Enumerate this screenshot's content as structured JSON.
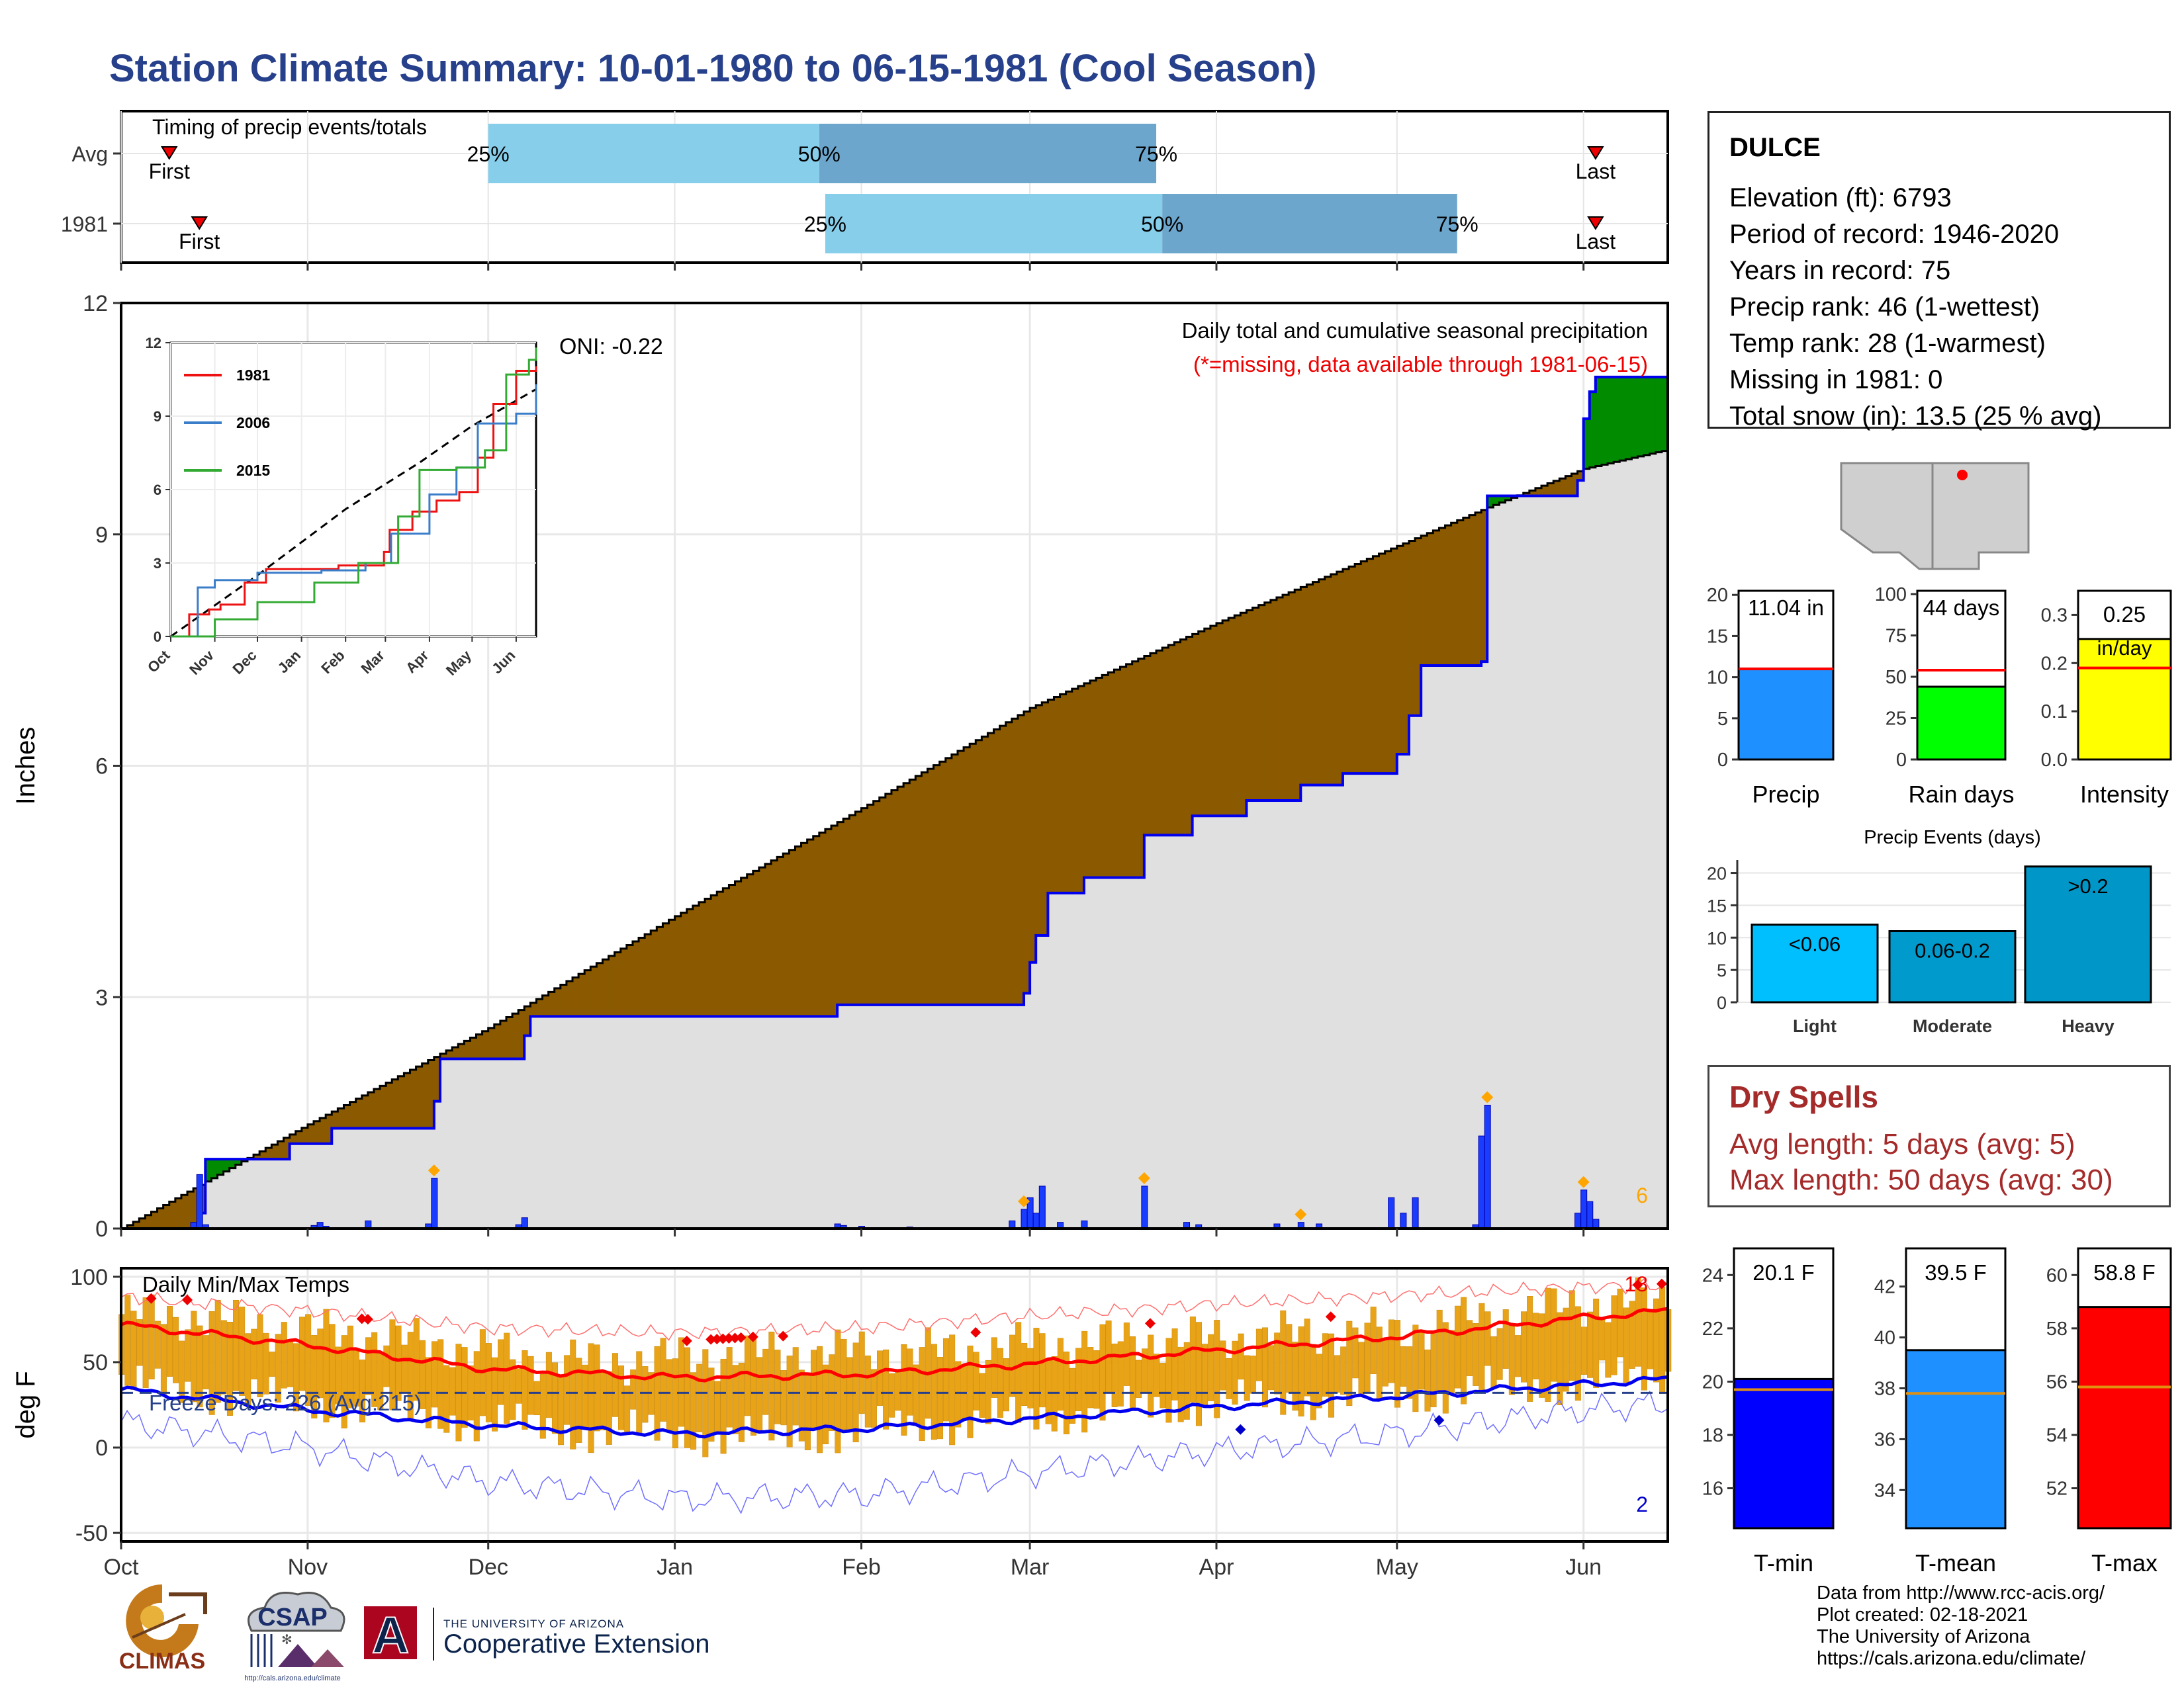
{
  "title": "Station Climate Summary: 10-01-1980 to 06-15-1981 (Cool Season)",
  "station": {
    "name": "DULCE",
    "lines": [
      "Elevation (ft): 6793",
      "Period of record: 1946-2020",
      "Years in record: 75",
      "Precip rank: 46 (1-wettest)",
      "Temp rank: 28 (1-warmest)",
      "Missing in 1981: 0",
      "Total snow (in): 13.5 (25 % avg)"
    ]
  },
  "dry_spells": {
    "heading": "Dry Spells",
    "avg_length": "Avg length: 5 days (avg: 5)",
    "max_length": "Max length: 50 days (avg: 30)"
  },
  "credits": {
    "line1": "Data from http://www.rcc-acis.org/",
    "line2": "Plot created: 02-18-2021",
    "line3": "The University of Arizona",
    "line4": "https://cals.arizona.edu/climate/"
  },
  "logos": {
    "climas": "CLIMAS",
    "csap": "CSAP",
    "csap_url": "http://cals.arizona.edu/climate",
    "ua_small": "THE UNIVERSITY OF ARIZONA",
    "ua_big": "Cooperative Extension",
    "ua_letter": "A"
  },
  "colors": {
    "title": "#27408b",
    "deficit": "#8b5a00",
    "surplus": "#008b00",
    "normal_fill": "#e0e0e0",
    "obs_line": "#0000ee",
    "temp_bar": "#e8a317",
    "q_light": "#87ceeb",
    "q_dark": "#6ca6cd"
  },
  "chart_data": [
    {
      "type": "bar",
      "name": "timing",
      "title": "Timing of precip events/totals",
      "rows": [
        "Avg",
        "1981"
      ],
      "x_units": "date",
      "xlim": [
        "1980-10-01",
        "1981-06-15"
      ],
      "avg": {
        "first": "1980-10-09",
        "q25": "1980-12-01",
        "q50": "1981-01-25",
        "q75": "1981-03-22",
        "last": "1981-06-03"
      },
      "year": {
        "first": "1980-10-14",
        "q25": "1981-01-26",
        "q50": "1981-03-23",
        "q75": "1981-05-11",
        "last": "1981-06-03"
      },
      "labels": {
        "first": "First",
        "last": "Last",
        "q25": "25%",
        "q50": "50%",
        "q75": "75%"
      }
    },
    {
      "type": "area",
      "name": "precipitation",
      "title": "Daily total and cumulative seasonal precipitation",
      "subtitle": "(*=missing, data available through 1981-06-15)",
      "annotation": "ONI: -0.22",
      "ylabel": "Inches",
      "ylim": [
        0,
        12
      ],
      "y_ticks": [
        0,
        3,
        6,
        9,
        12
      ],
      "x_ticks": [
        "Oct",
        "Nov",
        "Dec",
        "Jan",
        "Feb",
        "Mar",
        "Apr",
        "May",
        "Jun"
      ],
      "x_tick_dates": [
        "1980-10-01",
        "1980-11-01",
        "1980-12-01",
        "1981-01-01",
        "1981-02-01",
        "1981-03-01",
        "1981-04-01",
        "1981-05-01",
        "1981-06-01"
      ],
      "count_label": "6",
      "normal_cumulative": {
        "x": [
          "1980-10-01",
          "1980-11-01",
          "1980-12-01",
          "1981-01-01",
          "1981-02-01",
          "1981-03-01",
          "1981-04-01",
          "1981-05-01",
          "1981-05-16",
          "1981-06-01",
          "1981-06-15"
        ],
        "y": [
          0.0,
          1.35,
          2.6,
          4.05,
          5.45,
          6.75,
          7.85,
          8.85,
          9.35,
          9.85,
          10.1
        ]
      },
      "observed_cumulative": {
        "x": [
          "1980-10-01",
          "1980-10-14",
          "1980-10-15",
          "1980-10-28",
          "1980-10-29",
          "1980-11-05",
          "1980-11-22",
          "1980-11-23",
          "1980-12-07",
          "1980-12-08",
          "1981-01-27",
          "1981-01-28",
          "1981-02-28",
          "1981-03-01",
          "1981-03-02",
          "1981-03-04",
          "1981-03-10",
          "1981-03-20",
          "1981-03-28",
          "1981-04-06",
          "1981-04-15",
          "1981-04-22",
          "1981-05-01",
          "1981-05-03",
          "1981-05-05",
          "1981-05-15",
          "1981-05-16",
          "1981-05-31",
          "1981-06-01",
          "1981-06-02",
          "1981-06-03",
          "1981-06-15"
        ],
        "y": [
          0.0,
          0.2,
          0.9,
          0.9,
          1.1,
          1.3,
          1.65,
          2.2,
          2.5,
          2.75,
          2.75,
          2.9,
          3.05,
          3.45,
          3.8,
          4.35,
          4.55,
          5.1,
          5.35,
          5.55,
          5.75,
          5.9,
          6.15,
          6.65,
          7.3,
          7.35,
          9.5,
          9.7,
          10.5,
          10.85,
          11.04,
          11.04
        ]
      },
      "daily_precip": {
        "x": [
          "1980-10-13",
          "1980-10-14",
          "1980-10-15",
          "1980-11-02",
          "1980-11-03",
          "1980-11-04",
          "1980-11-11",
          "1980-11-21",
          "1980-11-22",
          "1980-12-06",
          "1980-12-07",
          "1981-01-28",
          "1981-01-29",
          "1981-02-01",
          "1981-02-09",
          "1981-02-26",
          "1981-02-28",
          "1981-03-01",
          "1981-03-02",
          "1981-03-03",
          "1981-03-06",
          "1981-03-10",
          "1981-03-20",
          "1981-03-27",
          "1981-03-29",
          "1981-04-11",
          "1981-04-15",
          "1981-04-18",
          "1981-04-30",
          "1981-05-02",
          "1981-05-04",
          "1981-05-14",
          "1981-05-15",
          "1981-05-16",
          "1981-05-31",
          "1981-06-01",
          "1981-06-02",
          "1981-06-03"
        ],
        "y": [
          0.08,
          0.7,
          0.05,
          0.04,
          0.08,
          0.03,
          0.1,
          0.06,
          0.65,
          0.05,
          0.14,
          0.06,
          0.04,
          0.03,
          0.02,
          0.1,
          0.25,
          0.4,
          0.2,
          0.55,
          0.08,
          0.1,
          0.55,
          0.08,
          0.05,
          0.06,
          0.08,
          0.06,
          0.4,
          0.2,
          0.4,
          0.05,
          1.2,
          1.6,
          0.2,
          0.5,
          0.35,
          0.12
        ]
      },
      "big_event_markers": [
        "1980-11-22",
        "1981-02-28",
        "1981-03-20",
        "1981-04-15",
        "1981-05-16",
        "1981-06-01"
      ]
    },
    {
      "type": "line",
      "name": "inset_cumulative",
      "ylim": [
        0,
        12
      ],
      "y_ticks": [
        0,
        3,
        6,
        9,
        12
      ],
      "x_ticks": [
        "Oct",
        "Nov",
        "Dec",
        "Jan",
        "Feb",
        "Mar",
        "Apr",
        "May",
        "Jun"
      ],
      "series": [
        {
          "name": "1981",
          "color": "#ee1111",
          "x": [
            "1980-10-01",
            "1980-10-14",
            "1980-10-28",
            "1980-11-05",
            "1980-11-22",
            "1980-12-07",
            "1981-01-27",
            "1981-02-28",
            "1981-03-04",
            "1981-03-20",
            "1981-04-06",
            "1981-04-22",
            "1981-05-05",
            "1981-05-16",
            "1981-06-01",
            "1981-06-15"
          ],
          "y": [
            0.0,
            0.9,
            1.1,
            1.3,
            2.2,
            2.75,
            2.9,
            3.45,
            4.35,
            5.1,
            5.55,
            5.9,
            7.3,
            9.5,
            10.85,
            11.04
          ]
        },
        {
          "name": "2006",
          "color": "#3a7dc9",
          "x": [
            "1980-10-01",
            "1980-10-20",
            "1980-11-01",
            "1980-12-01",
            "1981-01-15",
            "1981-02-15",
            "1981-03-05",
            "1981-04-01",
            "1981-04-20",
            "1981-05-05",
            "1981-06-01",
            "1981-06-15"
          ],
          "y": [
            0.0,
            2.0,
            2.3,
            2.6,
            2.7,
            3.0,
            4.2,
            5.8,
            6.9,
            8.7,
            9.1,
            10.3
          ]
        },
        {
          "name": "2015",
          "color": "#33aa33",
          "x": [
            "1980-10-01",
            "1980-11-01",
            "1980-12-01",
            "1981-01-10",
            "1981-02-10",
            "1981-03-10",
            "1981-03-25",
            "1981-04-20",
            "1981-05-10",
            "1981-05-25",
            "1981-06-10",
            "1981-06-15"
          ],
          "y": [
            0.0,
            0.7,
            1.4,
            2.2,
            3.0,
            4.9,
            6.8,
            6.9,
            7.6,
            10.7,
            11.3,
            11.8
          ]
        }
      ],
      "normal": {
        "x": [
          "1980-10-01",
          "1980-12-01",
          "1981-02-01",
          "1981-03-25",
          "1981-05-01",
          "1981-06-15"
        ],
        "y": [
          0.0,
          2.5,
          5.2,
          7.1,
          8.6,
          10.1
        ]
      }
    },
    {
      "type": "bar",
      "name": "summary_bars",
      "panels": [
        {
          "label": "Precip",
          "value": 11.04,
          "avg": 11.0,
          "value_text": "11.04 in",
          "ylim": [
            0,
            20
          ],
          "y_ticks": [
            0,
            5,
            10,
            15,
            20
          ],
          "color": "#1e90ff",
          "avg_color": "#ff0000"
        },
        {
          "label": "Rain days",
          "value": 44,
          "avg": 54,
          "value_text": "44 days",
          "ylim": [
            0,
            100
          ],
          "y_ticks": [
            0,
            25,
            50,
            75,
            100
          ],
          "color": "#00ff00",
          "avg_color": "#ff0000"
        },
        {
          "label": "Intensity",
          "value": 0.25,
          "avg": 0.19,
          "value_text": "0.25",
          "value_text2": "in/day",
          "ylim": [
            0,
            0.3
          ],
          "y_ticks": [
            0.0,
            0.1,
            0.2,
            0.3
          ],
          "color": "#ffff00",
          "avg_color": "#ff0000"
        }
      ]
    },
    {
      "type": "bar",
      "name": "precip_events",
      "title": "Precip Events (days)",
      "categories": [
        "Light",
        "Moderate",
        "Heavy"
      ],
      "values": [
        12,
        11,
        21
      ],
      "bar_labels": [
        "<0.06",
        "0.06-0.2",
        ">0.2"
      ],
      "colors": [
        "#00bfff",
        "#009acd",
        "#0097c8"
      ],
      "ylim": [
        0,
        21
      ],
      "y_ticks": [
        0,
        5,
        10,
        15,
        20
      ]
    },
    {
      "type": "bar",
      "name": "temperature",
      "title": "Daily Min/Max Temps",
      "ylabel": "deg F",
      "ylim": [
        -50,
        100
      ],
      "y_ticks": [
        -50,
        0,
        50,
        100
      ],
      "x_ticks": [
        "Oct",
        "Nov",
        "Dec",
        "Jan",
        "Feb",
        "Mar",
        "Apr",
        "May",
        "Jun"
      ],
      "freeze_text": "Freeze Days: 226 (Avg:215)",
      "freeze_line": 32,
      "record_high_count": "18",
      "record_low_count": "2",
      "avg_max": {
        "x": [
          "1980-10-01",
          "1980-11-01",
          "1980-12-01",
          "1981-01-01",
          "1981-02-01",
          "1981-03-01",
          "1981-04-01",
          "1981-05-01",
          "1981-06-01",
          "1981-06-15"
        ],
        "y": [
          72,
          60,
          46,
          41,
          43,
          49,
          57,
          65,
          76,
          80
        ]
      },
      "avg_min": {
        "x": [
          "1980-10-01",
          "1980-11-01",
          "1980-12-01",
          "1981-01-01",
          "1981-02-01",
          "1981-03-01",
          "1981-04-01",
          "1981-05-01",
          "1981-06-01",
          "1981-06-15"
        ],
        "y": [
          34,
          22,
          13,
          8,
          11,
          17,
          24,
          30,
          37,
          40
        ]
      },
      "record_max": {
        "x": [
          "1980-10-01",
          "1980-11-01",
          "1980-12-01",
          "1981-01-01",
          "1981-02-01",
          "1981-03-01",
          "1981-04-01",
          "1981-05-01",
          "1981-06-01",
          "1981-06-15"
        ],
        "y": [
          88,
          80,
          70,
          67,
          70,
          77,
          84,
          89,
          94,
          95
        ]
      },
      "record_min": {
        "x": [
          "1980-10-01",
          "1980-11-01",
          "1980-12-01",
          "1981-01-01",
          "1981-02-01",
          "1981-03-01",
          "1981-04-01",
          "1981-05-01",
          "1981-06-01",
          "1981-06-15"
        ],
        "y": [
          15,
          0,
          -20,
          -30,
          -28,
          -15,
          -2,
          8,
          22,
          26
        ]
      },
      "daily_max": {
        "x": [
          "1980-10-01",
          "1980-10-15",
          "1980-11-01",
          "1980-11-15",
          "1980-12-01",
          "1980-12-15",
          "1981-01-01",
          "1981-01-15",
          "1981-02-01",
          "1981-02-15",
          "1981-03-01",
          "1981-03-15",
          "1981-04-01",
          "1981-04-15",
          "1981-05-01",
          "1981-05-15",
          "1981-06-01",
          "1981-06-15"
        ],
        "y": [
          78,
          76,
          68,
          64,
          56,
          50,
          52,
          55,
          56,
          56,
          60,
          62,
          64,
          66,
          68,
          76,
          84,
          86
        ]
      },
      "daily_min": {
        "x": [
          "1980-10-01",
          "1980-10-15",
          "1980-11-01",
          "1980-11-15",
          "1980-12-01",
          "1980-12-15",
          "1981-01-01",
          "1981-01-15",
          "1981-02-01",
          "1981-02-15",
          "1981-03-01",
          "1981-03-15",
          "1981-04-01",
          "1981-04-15",
          "1981-05-01",
          "1981-05-15",
          "1981-06-01",
          "1981-06-15"
        ],
        "y": [
          36,
          32,
          26,
          22,
          14,
          10,
          8,
          6,
          10,
          14,
          18,
          22,
          26,
          28,
          30,
          34,
          38,
          42
        ]
      },
      "record_high_marks": [
        "1980-10-06",
        "1980-10-12",
        "1980-11-10",
        "1980-11-11",
        "1981-01-03",
        "1981-01-07",
        "1981-01-08",
        "1981-01-09",
        "1981-01-10",
        "1981-01-11",
        "1981-01-12",
        "1981-01-14",
        "1981-01-19",
        "1981-02-20",
        "1981-03-21",
        "1981-04-20",
        "1981-06-10",
        "1981-06-14"
      ],
      "record_low_marks": [
        "1981-04-05",
        "1981-05-08"
      ]
    },
    {
      "type": "bar",
      "name": "temperature_summary",
      "panels": [
        {
          "label": "T-min",
          "value": 20.1,
          "avg": 19.7,
          "value_text": "20.1 F",
          "ylim": [
            14.5,
            25
          ],
          "y_ticks": [
            16,
            18,
            20,
            22,
            24
          ],
          "color": "#0000ff"
        },
        {
          "label": "T-mean",
          "value": 39.5,
          "avg": 37.8,
          "value_text": "39.5 F",
          "ylim": [
            32.5,
            43.5
          ],
          "y_ticks": [
            34,
            36,
            38,
            40,
            42
          ],
          "color": "#1e90ff"
        },
        {
          "label": "T-max",
          "value": 58.8,
          "avg": 55.8,
          "value_text": "58.8 F",
          "ylim": [
            50.5,
            61
          ],
          "y_ticks": [
            52,
            54,
            56,
            58,
            60
          ],
          "color": "#ff0000"
        }
      ],
      "avg_color": "#e09010"
    }
  ]
}
